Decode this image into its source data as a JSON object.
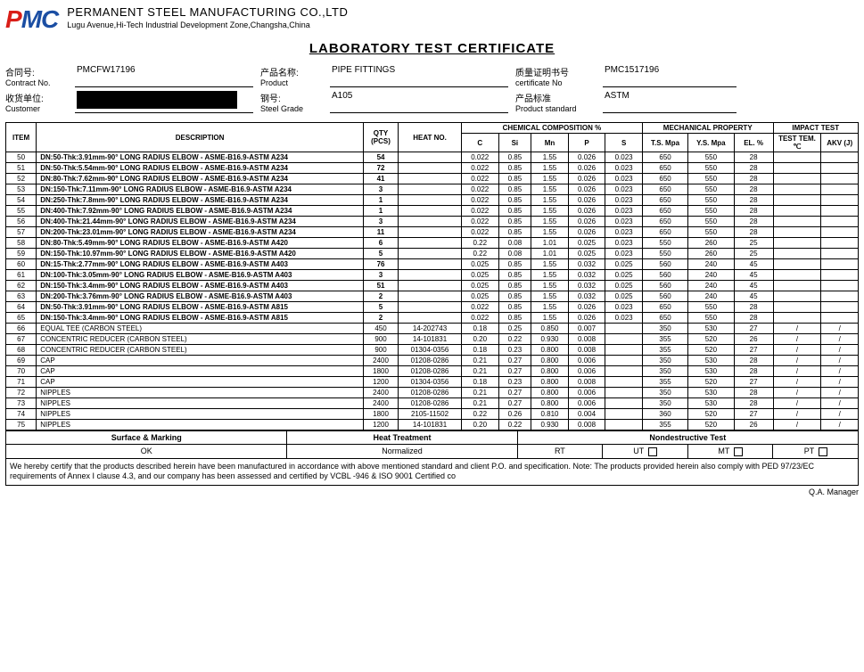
{
  "company": {
    "name": "PERMANENT STEEL MANUFACTURING CO.,LTD",
    "address": "Lugu Avenue,Hi-Tech Industrial Development Zone,Changsha,China"
  },
  "doc_title": "LABORATORY TEST CERTIFICATE",
  "info": {
    "contract_cn": "合同号:",
    "contract_en": "Contract No.",
    "contract_val": "PMCFW17196",
    "product_cn": "产品名称:",
    "product_en": "Product",
    "product_val": "PIPE FITTINGS",
    "cert_cn": "质量证明书号",
    "cert_en": "certificate No",
    "cert_val": "PMC1517196",
    "customer_cn": "收货单位:",
    "customer_en": "Customer",
    "grade_cn": "钢号:",
    "grade_en": "Steel Grade",
    "grade_val": "A105",
    "std_cn": "产品标准",
    "std_en": "Product standard",
    "std_val": "ASTM"
  },
  "columns": {
    "item": "ITEM",
    "desc": "DESCRIPTION",
    "qty": "QTY (PCS)",
    "heat": "HEAT NO.",
    "chem_group": "CHEMICAL COMPOSITION %",
    "mech_group": "MECHANICAL PROPERTY",
    "impact_group": "IMPACT TEST",
    "c": "C",
    "si": "Si",
    "mn": "Mn",
    "p": "P",
    "s": "S",
    "ts": "T.S. Mpa",
    "ys": "Y.S. Mpa",
    "el": "EL. %",
    "tt": "TEST TEM. ℃",
    "akv": "AKV (J)"
  },
  "rows": [
    {
      "item": "50",
      "desc": "DN:50-Thk:3.91mm-90° LONG RADIUS ELBOW - ASME-B16.9-ASTM A234",
      "bold": true,
      "qty": "54",
      "heat": "",
      "c": "0.022",
      "si": "0.85",
      "mn": "1.55",
      "p": "0.026",
      "s": "0.023",
      "ts": "650",
      "ys": "550",
      "el": "28",
      "tt": "",
      "akv": ""
    },
    {
      "item": "51",
      "desc": "DN:50-Thk:5.54mm-90° LONG RADIUS ELBOW - ASME-B16.9-ASTM A234",
      "bold": true,
      "qty": "72",
      "heat": "",
      "c": "0.022",
      "si": "0.85",
      "mn": "1.55",
      "p": "0.026",
      "s": "0.023",
      "ts": "650",
      "ys": "550",
      "el": "28",
      "tt": "",
      "akv": ""
    },
    {
      "item": "52",
      "desc": "DN:80-Thk:7.62mm-90° LONG RADIUS ELBOW - ASME-B16.9-ASTM A234",
      "bold": true,
      "qty": "41",
      "heat": "",
      "c": "0.022",
      "si": "0.85",
      "mn": "1.55",
      "p": "0.026",
      "s": "0.023",
      "ts": "650",
      "ys": "550",
      "el": "28",
      "tt": "",
      "akv": ""
    },
    {
      "item": "53",
      "desc": "DN:150-Thk:7.11mm-90° LONG RADIUS ELBOW - ASME-B16.9-ASTM A234",
      "bold": true,
      "qty": "3",
      "heat": "",
      "c": "0.022",
      "si": "0.85",
      "mn": "1.55",
      "p": "0.026",
      "s": "0.023",
      "ts": "650",
      "ys": "550",
      "el": "28",
      "tt": "",
      "akv": ""
    },
    {
      "item": "54",
      "desc": "DN:250-Thk:7.8mm-90° LONG RADIUS ELBOW - ASME-B16.9-ASTM A234",
      "bold": true,
      "qty": "1",
      "heat": "",
      "c": "0.022",
      "si": "0.85",
      "mn": "1.55",
      "p": "0.026",
      "s": "0.023",
      "ts": "650",
      "ys": "550",
      "el": "28",
      "tt": "",
      "akv": ""
    },
    {
      "item": "55",
      "desc": "DN:400-Thk:7.92mm-90° LONG RADIUS ELBOW - ASME-B16.9-ASTM A234",
      "bold": true,
      "qty": "1",
      "heat": "",
      "c": "0.022",
      "si": "0.85",
      "mn": "1.55",
      "p": "0.026",
      "s": "0.023",
      "ts": "650",
      "ys": "550",
      "el": "28",
      "tt": "",
      "akv": ""
    },
    {
      "item": "56",
      "desc": "DN:400-Thk:21.44mm-90° LONG RADIUS ELBOW - ASME-B16.9-ASTM A234",
      "bold": true,
      "qty": "3",
      "heat": "",
      "c": "0.022",
      "si": "0.85",
      "mn": "1.55",
      "p": "0.026",
      "s": "0.023",
      "ts": "650",
      "ys": "550",
      "el": "28",
      "tt": "",
      "akv": ""
    },
    {
      "item": "57",
      "desc": "DN:200-Thk:23.01mm-90° LONG RADIUS ELBOW - ASME-B16.9-ASTM A234",
      "bold": true,
      "qty": "11",
      "heat": "",
      "c": "0.022",
      "si": "0.85",
      "mn": "1.55",
      "p": "0.026",
      "s": "0.023",
      "ts": "650",
      "ys": "550",
      "el": "28",
      "tt": "",
      "akv": ""
    },
    {
      "item": "58",
      "desc": "DN:80-Thk:5.49mm-90° LONG RADIUS ELBOW - ASME-B16.9-ASTM A420",
      "bold": true,
      "qty": "6",
      "heat": "",
      "c": "0.22",
      "si": "0.08",
      "mn": "1.01",
      "p": "0.025",
      "s": "0.023",
      "ts": "550",
      "ys": "260",
      "el": "25",
      "tt": "",
      "akv": ""
    },
    {
      "item": "59",
      "desc": "DN:150-Thk:10.97mm-90° LONG RADIUS ELBOW - ASME-B16.9-ASTM A420",
      "bold": true,
      "qty": "5",
      "heat": "",
      "c": "0.22",
      "si": "0.08",
      "mn": "1.01",
      "p": "0.025",
      "s": "0.023",
      "ts": "550",
      "ys": "260",
      "el": "25",
      "tt": "",
      "akv": ""
    },
    {
      "item": "60",
      "desc": "DN:15-Thk:2.77mm-90° LONG RADIUS ELBOW - ASME-B16.9-ASTM A403",
      "bold": true,
      "qty": "76",
      "heat": "",
      "c": "0.025",
      "si": "0.85",
      "mn": "1.55",
      "p": "0.032",
      "s": "0.025",
      "ts": "560",
      "ys": "240",
      "el": "45",
      "tt": "",
      "akv": ""
    },
    {
      "item": "61",
      "desc": "DN:100-Thk:3.05mm-90° LONG RADIUS ELBOW - ASME-B16.9-ASTM A403",
      "bold": true,
      "qty": "3",
      "heat": "",
      "c": "0.025",
      "si": "0.85",
      "mn": "1.55",
      "p": "0.032",
      "s": "0.025",
      "ts": "560",
      "ys": "240",
      "el": "45",
      "tt": "",
      "akv": ""
    },
    {
      "item": "62",
      "desc": "DN:150-Thk:3.4mm-90° LONG RADIUS ELBOW - ASME-B16.9-ASTM A403",
      "bold": true,
      "qty": "51",
      "heat": "",
      "c": "0.025",
      "si": "0.85",
      "mn": "1.55",
      "p": "0.032",
      "s": "0.025",
      "ts": "560",
      "ys": "240",
      "el": "45",
      "tt": "",
      "akv": ""
    },
    {
      "item": "63",
      "desc": "DN:200-Thk:3.76mm-90° LONG RADIUS ELBOW - ASME-B16.9-ASTM A403",
      "bold": true,
      "qty": "2",
      "heat": "",
      "c": "0.025",
      "si": "0.85",
      "mn": "1.55",
      "p": "0.032",
      "s": "0.025",
      "ts": "560",
      "ys": "240",
      "el": "45",
      "tt": "",
      "akv": ""
    },
    {
      "item": "64",
      "desc": "DN:50-Thk:3.91mm-90° LONG RADIUS ELBOW - ASME-B16.9-ASTM A815",
      "bold": true,
      "qty": "5",
      "heat": "",
      "c": "0.022",
      "si": "0.85",
      "mn": "1.55",
      "p": "0.026",
      "s": "0.023",
      "ts": "650",
      "ys": "550",
      "el": "28",
      "tt": "",
      "akv": ""
    },
    {
      "item": "65",
      "desc": "DN:150-Thk:3.4mm-90° LONG RADIUS ELBOW - ASME-B16.9-ASTM A815",
      "bold": true,
      "qty": "2",
      "heat": "",
      "c": "0.022",
      "si": "0.85",
      "mn": "1.55",
      "p": "0.026",
      "s": "0.023",
      "ts": "650",
      "ys": "550",
      "el": "28",
      "tt": "",
      "akv": ""
    },
    {
      "item": "66",
      "desc": "EQUAL TEE (CARBON STEEL)",
      "bold": false,
      "qty": "450",
      "heat": "14-202743",
      "c": "0.18",
      "si": "0.25",
      "mn": "0.850",
      "p": "0.007",
      "s": "",
      "ts": "350",
      "ys": "530",
      "el": "27",
      "tt": "/",
      "akv": "/"
    },
    {
      "item": "67",
      "desc": "CONCENTRIC REDUCER (CARBON STEEL)",
      "bold": false,
      "qty": "900",
      "heat": "14-101831",
      "c": "0.20",
      "si": "0.22",
      "mn": "0.930",
      "p": "0.008",
      "s": "",
      "ts": "355",
      "ys": "520",
      "el": "26",
      "tt": "/",
      "akv": "/"
    },
    {
      "item": "68",
      "desc": "CONCENTRIC REDUCER (CARBON STEEL)",
      "bold": false,
      "qty": "900",
      "heat": "01304-0356",
      "c": "0.18",
      "si": "0.23",
      "mn": "0.800",
      "p": "0.008",
      "s": "",
      "ts": "355",
      "ys": "520",
      "el": "27",
      "tt": "/",
      "akv": "/"
    },
    {
      "item": "69",
      "desc": "CAP",
      "bold": false,
      "qty": "2400",
      "heat": "01208-0286",
      "c": "0.21",
      "si": "0.27",
      "mn": "0.800",
      "p": "0.006",
      "s": "",
      "ts": "350",
      "ys": "530",
      "el": "28",
      "tt": "/",
      "akv": "/"
    },
    {
      "item": "70",
      "desc": "CAP",
      "bold": false,
      "qty": "1800",
      "heat": "01208-0286",
      "c": "0.21",
      "si": "0.27",
      "mn": "0.800",
      "p": "0.006",
      "s": "",
      "ts": "350",
      "ys": "530",
      "el": "28",
      "tt": "/",
      "akv": "/"
    },
    {
      "item": "71",
      "desc": "CAP",
      "bold": false,
      "qty": "1200",
      "heat": "01304-0356",
      "c": "0.18",
      "si": "0.23",
      "mn": "0.800",
      "p": "0.008",
      "s": "",
      "ts": "355",
      "ys": "520",
      "el": "27",
      "tt": "/",
      "akv": "/"
    },
    {
      "item": "72",
      "desc": "NIPPLES",
      "bold": false,
      "qty": "2400",
      "heat": "01208-0286",
      "c": "0.21",
      "si": "0.27",
      "mn": "0.800",
      "p": "0.006",
      "s": "",
      "ts": "350",
      "ys": "530",
      "el": "28",
      "tt": "/",
      "akv": "/"
    },
    {
      "item": "73",
      "desc": "NIPPLES",
      "bold": false,
      "qty": "2400",
      "heat": "01208-0286",
      "c": "0.21",
      "si": "0.27",
      "mn": "0.800",
      "p": "0.006",
      "s": "",
      "ts": "350",
      "ys": "530",
      "el": "28",
      "tt": "/",
      "akv": "/"
    },
    {
      "item": "74",
      "desc": "NIPPLES",
      "bold": false,
      "qty": "1800",
      "heat": "2105-11502",
      "c": "0.22",
      "si": "0.26",
      "mn": "0.810",
      "p": "0.004",
      "s": "",
      "ts": "360",
      "ys": "520",
      "el": "27",
      "tt": "/",
      "akv": "/"
    },
    {
      "item": "75",
      "desc": "NIPPLES",
      "bold": false,
      "qty": "1200",
      "heat": "14-101831",
      "c": "0.20",
      "si": "0.22",
      "mn": "0.930",
      "p": "0.008",
      "s": "",
      "ts": "355",
      "ys": "520",
      "el": "26",
      "tt": "/",
      "akv": "/"
    }
  ],
  "bottom": {
    "surface": "Surface & Marking",
    "surface_val": "OK",
    "heat": "Heat Treatment",
    "heat_val": "Normalized",
    "nde": "Nondestructive Test",
    "rt": "RT",
    "ut": "UT",
    "mt": "MT",
    "pt": "PT"
  },
  "cert_text": "We hereby certify that the products described herein have been manufactured in accordance with above mentioned standard and client P.O. and specification.\nNote: The products provided herein also comply with  PED 97/23/EC requirements of Annex I clause 4.3, and our company has been assessed and certified by VCBL -946 &  ISO 9001 Certified co",
  "qa": "Q.A. Manager"
}
